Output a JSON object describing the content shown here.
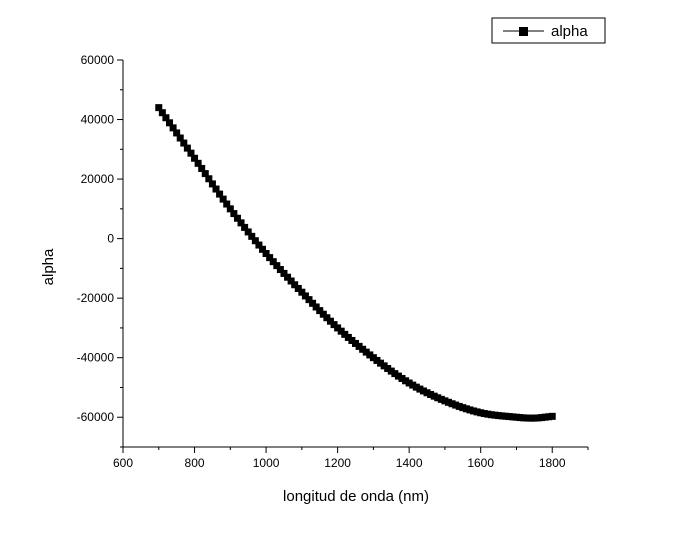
{
  "chart_data": {
    "type": "line",
    "title": "",
    "xlabel": "longitud de onda (nm)",
    "ylabel": "alpha",
    "xlim": [
      600,
      1900
    ],
    "ylim": [
      -70000,
      60000
    ],
    "x_ticks": [
      600,
      800,
      1000,
      1200,
      1400,
      1600,
      1800
    ],
    "y_ticks": [
      60000,
      40000,
      20000,
      0,
      -20000,
      -40000,
      -60000
    ],
    "legend_position": "top-right",
    "grid": false,
    "series": [
      {
        "name": "alpha",
        "marker": "square",
        "color": "#000000",
        "x_start": 700,
        "x_end": 1800,
        "x_step": 10,
        "x": [
          700,
          800,
          900,
          1000,
          1100,
          1200,
          1300,
          1400,
          1500,
          1600,
          1700,
          1750,
          1800
        ],
        "y": [
          44000,
          27000,
          10000,
          -5000,
          -18000,
          -30000,
          -40000,
          -48500,
          -54500,
          -58500,
          -60000,
          -60300,
          -59700
        ]
      }
    ]
  }
}
